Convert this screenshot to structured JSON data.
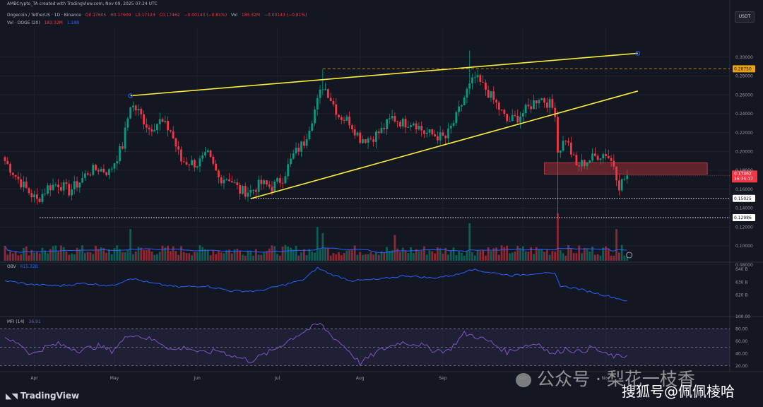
{
  "header": {
    "credit": "AMBCrypto_TA created with TradingView.com, Nov 09, 2025 07:24 UTC",
    "symbol": "Dogecoin / TetherUS · 1D · Binance",
    "ohlc": [
      "O0.17605",
      "H0.17609",
      "L0.17123",
      "C0.17462",
      "−0.00143 (−0.81%)"
    ],
    "vol_label": "Vol",
    "vol_value": "183.32M",
    "vol_change": "−0.00143 (−0.81%)",
    "vol_ma_label": "Vol · DOGE (20)",
    "vol_ma_value": "183.32M",
    "vol_ma_value2": "1.18B",
    "currency_button": "USDT",
    "obv_label": "OBV",
    "obv_value": "615.32B",
    "mfi_label": "MFI (14)",
    "mfi_value": "36.91"
  },
  "branding": {
    "tradingview": "TradingView",
    "watermark_gzh": "公众号 · 梨花一枝香",
    "watermark_sohu": "搜狐号@佩佩棱哈"
  },
  "colors": {
    "background": "#131722",
    "up": "#089981",
    "down": "#f23645",
    "trendline": "#ffeb3b",
    "obv": "#2962ff",
    "mfi": "#7e57c2",
    "volume_ma": "#2962ff",
    "resistance_zone": "#7a2830"
  },
  "chart_data": {
    "type": "candlestick",
    "symbol": "DOGE/USDT",
    "interval": "1D",
    "ylim": [
      0.07,
      0.32
    ],
    "price_ticks": [
      0.08,
      0.1,
      0.12,
      0.14,
      0.16,
      0.18,
      0.2,
      0.22,
      0.24,
      0.26,
      0.28,
      0.3
    ],
    "x_tick_labels": [
      {
        "label": "Apr",
        "day": 11
      },
      {
        "label": "May",
        "day": 41
      },
      {
        "label": "Jun",
        "day": 72
      },
      {
        "label": "Jul",
        "day": 102
      },
      {
        "label": "Aug",
        "day": 133
      },
      {
        "label": "Sep",
        "day": 164
      },
      {
        "label": "Oct",
        "day": 194
      },
      {
        "label": "Nov",
        "day": 225
      }
    ],
    "total_days": 233,
    "last_price": 0.17462,
    "last_price_countdown": "16:35:17",
    "price_path": [
      [
        0,
        0.19
      ],
      [
        4,
        0.174
      ],
      [
        8,
        0.16
      ],
      [
        12,
        0.148
      ],
      [
        16,
        0.162
      ],
      [
        20,
        0.166
      ],
      [
        24,
        0.158
      ],
      [
        28,
        0.168
      ],
      [
        31,
        0.178
      ],
      [
        35,
        0.182
      ],
      [
        39,
        0.178
      ],
      [
        44,
        0.206
      ],
      [
        47,
        0.25
      ],
      [
        50,
        0.242
      ],
      [
        54,
        0.224
      ],
      [
        58,
        0.232
      ],
      [
        62,
        0.222
      ],
      [
        66,
        0.19
      ],
      [
        72,
        0.187
      ],
      [
        76,
        0.196
      ],
      [
        80,
        0.172
      ],
      [
        84,
        0.172
      ],
      [
        88,
        0.158
      ],
      [
        92,
        0.158
      ],
      [
        96,
        0.166
      ],
      [
        100,
        0.162
      ],
      [
        104,
        0.172
      ],
      [
        108,
        0.196
      ],
      [
        112,
        0.21
      ],
      [
        116,
        0.244
      ],
      [
        119,
        0.27
      ],
      [
        121,
        0.262
      ],
      [
        125,
        0.238
      ],
      [
        129,
        0.232
      ],
      [
        133,
        0.214
      ],
      [
        137,
        0.214
      ],
      [
        141,
        0.222
      ],
      [
        145,
        0.236
      ],
      [
        149,
        0.23
      ],
      [
        153,
        0.232
      ],
      [
        157,
        0.22
      ],
      [
        161,
        0.217
      ],
      [
        165,
        0.214
      ],
      [
        169,
        0.236
      ],
      [
        173,
        0.264
      ],
      [
        176,
        0.278
      ],
      [
        180,
        0.266
      ],
      [
        184,
        0.25
      ],
      [
        188,
        0.232
      ],
      [
        192,
        0.236
      ],
      [
        196,
        0.246
      ],
      [
        200,
        0.258
      ],
      [
        204,
        0.25
      ],
      [
        206,
        0.242
      ],
      [
        207,
        0.2
      ],
      [
        210,
        0.214
      ],
      [
        214,
        0.184
      ],
      [
        218,
        0.19
      ],
      [
        222,
        0.196
      ],
      [
        225,
        0.198
      ],
      [
        228,
        0.186
      ],
      [
        230,
        0.164
      ],
      [
        233,
        0.175
      ]
    ],
    "notable_wicks": [
      {
        "day": 174,
        "high": 0.307
      },
      {
        "day": 207,
        "low": 0.13
      },
      {
        "day": 119,
        "high": 0.287
      }
    ],
    "rising_wedge": {
      "upper": {
        "from": [
          47,
          0.259
        ],
        "to": [
          237,
          0.304
        ]
      },
      "lower": {
        "from": [
          92,
          0.15
        ],
        "to": [
          237,
          0.264
        ]
      }
    },
    "horizontal_levels": [
      {
        "price": 0.2875,
        "label": "0.28750",
        "style": "dashed",
        "color": "#b8860b",
        "from_day": 119
      },
      {
        "price": 0.15025,
        "label": "0.15025",
        "style": "dotted",
        "color": "#ffffff",
        "from_day": 92
      },
      {
        "price": 0.12986,
        "label": "0.12986",
        "style": "dotted",
        "color": "#ffffff",
        "from_day": 13
      }
    ],
    "resistance_zone": {
      "from_day": 202,
      "to_day": 263,
      "top": 0.188,
      "bottom": 0.176
    },
    "volume": {
      "ma_period": 20,
      "spikes": [
        {
          "day": 47,
          "value": 1.6
        },
        {
          "day": 117,
          "value": 1.7
        },
        {
          "day": 119,
          "value": 1.4
        },
        {
          "day": 146,
          "value": 1.3
        },
        {
          "day": 174,
          "value": 1.9
        },
        {
          "day": 207,
          "value": 2.4
        },
        {
          "day": 229,
          "value": 1.6
        }
      ]
    },
    "obv": {
      "ticks": [
        "640 B",
        "630 B",
        "620 B"
      ],
      "tick_values": [
        640,
        630,
        620
      ],
      "range": [
        613,
        645
      ],
      "last": 615.32,
      "path": [
        [
          0,
          631
        ],
        [
          10,
          628
        ],
        [
          20,
          627
        ],
        [
          30,
          629
        ],
        [
          40,
          627
        ],
        [
          47,
          633
        ],
        [
          55,
          629
        ],
        [
          65,
          626
        ],
        [
          75,
          627
        ],
        [
          85,
          623
        ],
        [
          95,
          623
        ],
        [
          105,
          628
        ],
        [
          112,
          632
        ],
        [
          117,
          641
        ],
        [
          122,
          636
        ],
        [
          130,
          631
        ],
        [
          140,
          632
        ],
        [
          150,
          635
        ],
        [
          160,
          633
        ],
        [
          170,
          636
        ],
        [
          174,
          640
        ],
        [
          180,
          638
        ],
        [
          190,
          635
        ],
        [
          200,
          637
        ],
        [
          206,
          636
        ],
        [
          208,
          627
        ],
        [
          214,
          625
        ],
        [
          220,
          622
        ],
        [
          228,
          618
        ],
        [
          233,
          615.3
        ]
      ]
    },
    "mfi": {
      "period": 14,
      "ticks": [
        "100.00",
        "80.00",
        "60.00",
        "40.00",
        "20.00"
      ],
      "tick_values": [
        100,
        80,
        60,
        40,
        20
      ],
      "bands": {
        "overbought": 80,
        "mid": 50,
        "oversold": 20
      },
      "last": 36.91,
      "path": [
        [
          0,
          62
        ],
        [
          5,
          58
        ],
        [
          10,
          38
        ],
        [
          15,
          50
        ],
        [
          20,
          55
        ],
        [
          28,
          45
        ],
        [
          35,
          52
        ],
        [
          40,
          44
        ],
        [
          47,
          72
        ],
        [
          52,
          66
        ],
        [
          58,
          58
        ],
        [
          63,
          45
        ],
        [
          68,
          50
        ],
        [
          74,
          40
        ],
        [
          80,
          45
        ],
        [
          86,
          35
        ],
        [
          92,
          28
        ],
        [
          100,
          44
        ],
        [
          108,
          66
        ],
        [
          114,
          80
        ],
        [
          118,
          88
        ],
        [
          122,
          70
        ],
        [
          128,
          48
        ],
        [
          133,
          24
        ],
        [
          140,
          44
        ],
        [
          148,
          58
        ],
        [
          155,
          55
        ],
        [
          160,
          46
        ],
        [
          166,
          44
        ],
        [
          172,
          72
        ],
        [
          176,
          68
        ],
        [
          182,
          58
        ],
        [
          188,
          42
        ],
        [
          194,
          52
        ],
        [
          200,
          56
        ],
        [
          205,
          38
        ],
        [
          210,
          48
        ],
        [
          215,
          42
        ],
        [
          220,
          50
        ],
        [
          225,
          38
        ],
        [
          230,
          34
        ],
        [
          233,
          37
        ]
      ]
    }
  }
}
